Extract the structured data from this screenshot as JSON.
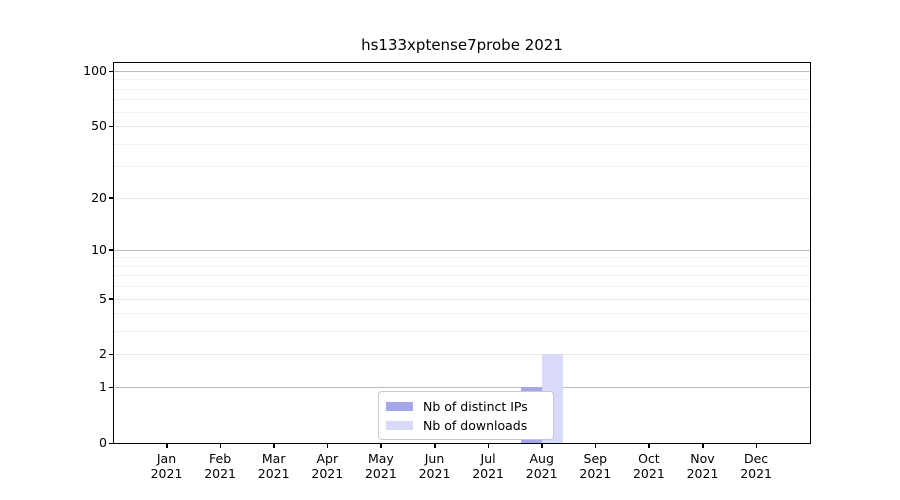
{
  "chart_data": {
    "type": "bar",
    "title": "hs133xptense7probe 2021",
    "categories": [
      "Jan 2021",
      "Feb 2021",
      "Mar 2021",
      "Apr 2021",
      "May 2021",
      "Jun 2021",
      "Jul 2021",
      "Aug 2021",
      "Sep 2021",
      "Oct 2021",
      "Nov 2021",
      "Dec 2021"
    ],
    "series": [
      {
        "name": "Nb of distinct IPs",
        "color": "#a6a6e8",
        "values": [
          0,
          0,
          0,
          0,
          0,
          0,
          0,
          1,
          0,
          0,
          0,
          0
        ]
      },
      {
        "name": "Nb of downloads",
        "color": "#d9d9f8",
        "values": [
          0,
          0,
          0,
          0,
          0,
          0,
          0,
          2,
          0,
          0,
          0,
          0
        ]
      }
    ],
    "y_axis": {
      "scale": "log1p",
      "ticks": [
        0,
        1,
        2,
        5,
        10,
        20,
        50,
        100
      ],
      "minor_gridlines": [
        3,
        4,
        6,
        7,
        8,
        9,
        30,
        40,
        60,
        70,
        80,
        90
      ],
      "ylim": [
        0,
        110
      ]
    },
    "xlabel": "",
    "ylabel": "",
    "legend": {
      "position": "lower-center",
      "entries": [
        "Nb of distinct IPs",
        "Nb of downloads"
      ]
    },
    "colors": {
      "grid_power10": "#bcbcbc",
      "grid_major": "#e7e7e7",
      "grid_minor": "#f2f2f2",
      "axis": "#000000",
      "background": "#ffffff"
    }
  }
}
